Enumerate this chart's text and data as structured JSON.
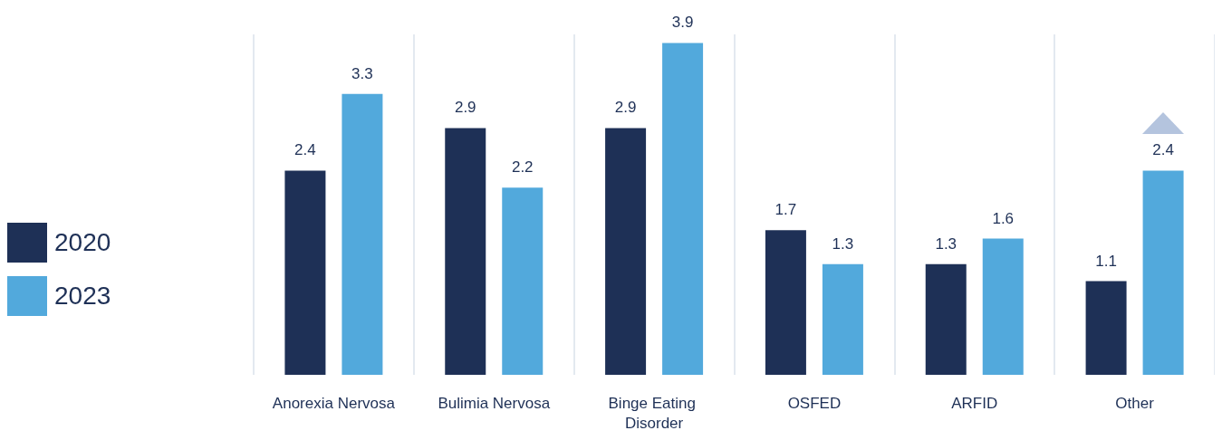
{
  "chart_data": {
    "type": "bar",
    "categories": [
      "Anorexia Nervosa",
      "Bulimia Nervosa",
      "Binge Eating Disorder",
      "OSFED",
      "ARFID",
      "Other"
    ],
    "series": [
      {
        "name": "2020",
        "color": "#1e3056",
        "values": [
          2.4,
          2.9,
          2.9,
          1.7,
          1.3,
          1.1
        ]
      },
      {
        "name": "2023",
        "color": "#52a9dc",
        "values": [
          3.3,
          2.2,
          3.9,
          1.3,
          1.6,
          2.4
        ]
      }
    ],
    "data_labels": true,
    "legend": "left",
    "grid": "x"
  }
}
